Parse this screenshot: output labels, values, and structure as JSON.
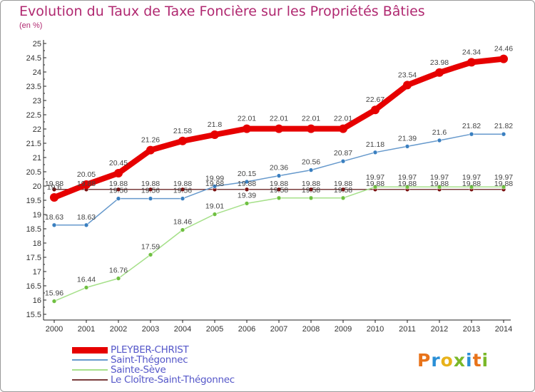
{
  "title": "Evolution du Taux de Taxe Foncière sur les Propriétés Bâties",
  "unit": "(en %)",
  "logo": [
    "P",
    "r",
    "o",
    "x",
    "i",
    "t",
    "i"
  ],
  "logo_colors": [
    "#e8731a",
    "#2a8fd6",
    "#e8b21a",
    "#7ab829",
    "#2a8fd6",
    "#e8731a",
    "#7ab829"
  ],
  "chart_data": {
    "type": "line",
    "x": [
      "2000",
      "2001",
      "2002",
      "2003",
      "2004",
      "2005",
      "2006",
      "2007",
      "2008",
      "2009",
      "2010",
      "2011",
      "2012",
      "2013",
      "2014"
    ],
    "ylim": [
      15.5,
      25
    ],
    "yticks": [
      "15.5",
      "16",
      "16.5",
      "17",
      "17.5",
      "18",
      "18.5",
      "19",
      "19.5",
      "20",
      "20.5",
      "21",
      "21.5",
      "22",
      "22.5",
      "23",
      "23.5",
      "24",
      "24.5",
      "25"
    ],
    "grid": false,
    "legend_position": "bottom-left",
    "series": [
      {
        "name": "PLEYBER-CHRIST",
        "color": "#e60000",
        "point": "#e60000",
        "width": 8,
        "r": 6,
        "values": [
          19.6,
          20.05,
          20.45,
          21.26,
          21.58,
          21.8,
          22.01,
          22.01,
          22.01,
          22.01,
          22.67,
          23.54,
          23.98,
          24.34,
          24.46
        ],
        "labels": [
          "19.6",
          "20.05",
          "20.45",
          "21.26",
          "21.58",
          "21.8",
          "22.01",
          "22.01",
          "22.01",
          "22.01",
          "22.67",
          "23.54",
          "23.98",
          "24.34",
          "24.46"
        ]
      },
      {
        "name": "Saint-Thégonnec",
        "color": "#6699cc",
        "point": "#3a7fc0",
        "width": 1.5,
        "r": 3,
        "values": [
          18.63,
          18.63,
          19.56,
          19.56,
          19.56,
          19.99,
          20.15,
          20.36,
          20.56,
          20.87,
          21.18,
          21.39,
          21.6,
          21.82,
          21.82
        ],
        "labels": [
          "18.63",
          "18.63",
          "19.56",
          "19.56",
          "19.56",
          "19.99",
          "20.15",
          "20.36",
          "20.56",
          "20.87",
          "21.18",
          "21.39",
          "21.6",
          "21.82",
          "21.82"
        ]
      },
      {
        "name": "Sainte-Sève",
        "color": "#a6e08a",
        "point": "#6fc041",
        "width": 1.5,
        "r": 3,
        "values": [
          15.96,
          16.44,
          16.76,
          17.59,
          18.46,
          19.01,
          19.39,
          19.58,
          19.58,
          19.58,
          19.97,
          19.97,
          19.97,
          19.97,
          19.97
        ],
        "labels": [
          "15.96",
          "16.44",
          "16.76",
          "17.59",
          "18.46",
          "19.01",
          "19.39",
          "19.58",
          "19.58",
          "19.58",
          "19.97",
          "19.97",
          "19.97",
          "19.97",
          "19.97"
        ]
      },
      {
        "name": "Le Cloître-Saint-Thégonnec",
        "color": "#7a3d3d",
        "point": "#7a1010",
        "width": 1.5,
        "r": 3,
        "values": [
          19.88,
          19.88,
          19.88,
          19.88,
          19.88,
          19.88,
          19.88,
          19.88,
          19.88,
          19.88,
          19.88,
          19.88,
          19.88,
          19.88,
          19.88
        ],
        "labels": [
          "19.88",
          "19.88",
          "19.88",
          "19.88",
          "19.88",
          "19.88",
          "19.88",
          "19.88",
          "19.88",
          "19.88",
          "19.88",
          "19.88",
          "19.88",
          "19.88",
          "19.88"
        ]
      }
    ]
  }
}
